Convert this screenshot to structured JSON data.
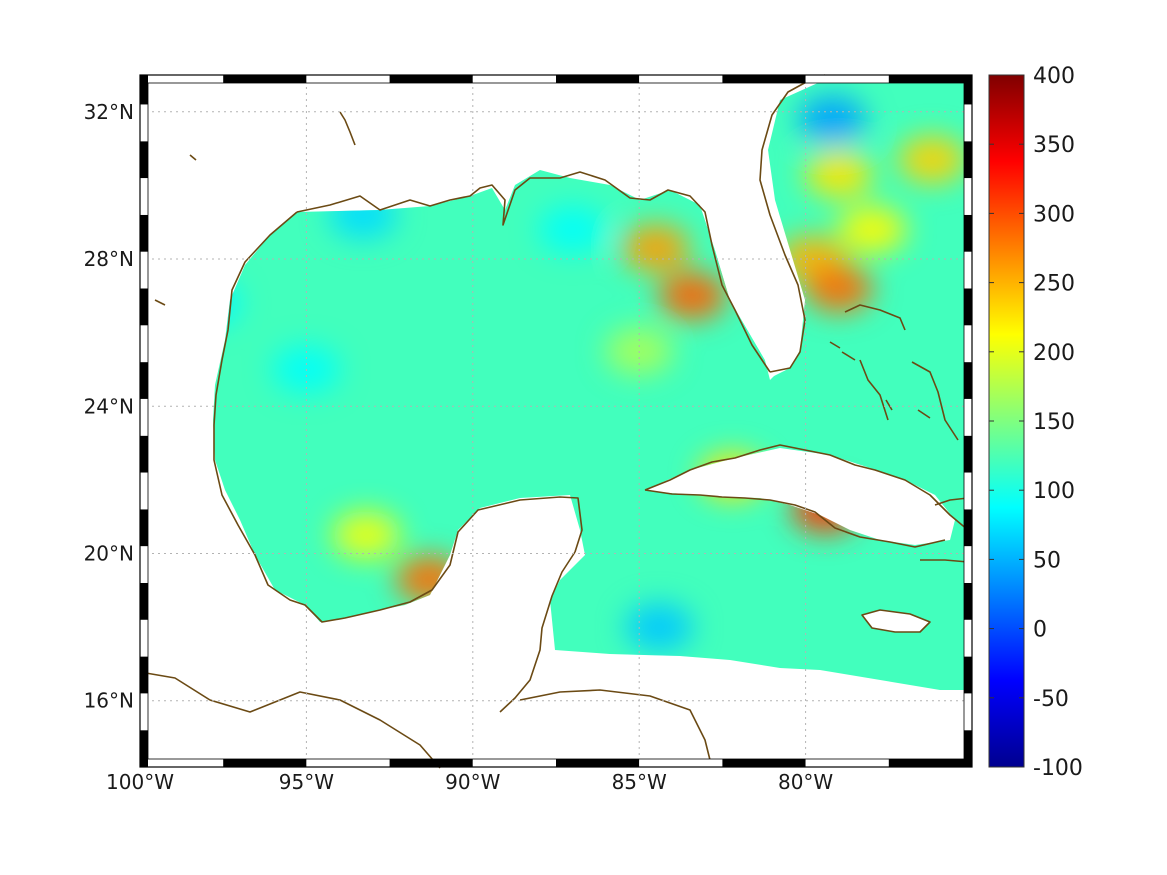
{
  "map": {
    "lon_range": [
      -100,
      -75
    ],
    "lat_range": [
      14.2,
      33
    ],
    "x_ticks": [
      {
        "value": -100,
        "label": "100°W"
      },
      {
        "value": -95,
        "label": "95°W"
      },
      {
        "value": -90,
        "label": "90°W"
      },
      {
        "value": -85,
        "label": "85°W"
      },
      {
        "value": -80,
        "label": "80°W"
      }
    ],
    "y_ticks": [
      {
        "value": 32,
        "label": "32°N"
      },
      {
        "value": 28,
        "label": "28°N"
      },
      {
        "value": 24,
        "label": "24°N"
      },
      {
        "value": 20,
        "label": "20°N"
      },
      {
        "value": 16,
        "label": "16°N"
      }
    ],
    "grid": "dotted",
    "coastline_color": "#6b4a14",
    "land_color": "#ffffff"
  },
  "colorbar": {
    "min": -100,
    "max": 400,
    "colormap": "jet",
    "ticks": [
      {
        "value": 400,
        "label": "400"
      },
      {
        "value": 350,
        "label": "350"
      },
      {
        "value": 300,
        "label": "300"
      },
      {
        "value": 250,
        "label": "250"
      },
      {
        "value": 200,
        "label": "200"
      },
      {
        "value": 150,
        "label": "150"
      },
      {
        "value": 100,
        "label": "100"
      },
      {
        "value": 50,
        "label": "50"
      },
      {
        "value": 0,
        "label": "0"
      },
      {
        "value": -50,
        "label": "-50"
      },
      {
        "value": -100,
        "label": "-100"
      }
    ]
  },
  "chart_data": {
    "type": "heatmap",
    "title": "",
    "xlabel": "",
    "ylabel": "",
    "x_range": [
      -100,
      -75
    ],
    "y_range": [
      14.2,
      33
    ],
    "value_range": [
      -100,
      400
    ],
    "background_value": 120,
    "hotspots": [
      {
        "lon": -84.5,
        "lat": 28.3,
        "value": 260
      },
      {
        "lon": -83.4,
        "lat": 27.0,
        "value": 290
      },
      {
        "lon": -79.0,
        "lat": 30.3,
        "value": 225
      },
      {
        "lon": -76.2,
        "lat": 30.7,
        "value": 235
      },
      {
        "lon": -79.8,
        "lat": 28.0,
        "value": 250
      },
      {
        "lon": -79.0,
        "lat": 27.2,
        "value": 285
      },
      {
        "lon": -78.0,
        "lat": 28.8,
        "value": 215
      },
      {
        "lon": -93.2,
        "lat": 20.5,
        "value": 205
      },
      {
        "lon": -91.3,
        "lat": 19.3,
        "value": 285
      },
      {
        "lon": -82.2,
        "lat": 22.1,
        "value": 225
      },
      {
        "lon": -79.4,
        "lat": 21.2,
        "value": 310
      },
      {
        "lon": -85.0,
        "lat": 25.5,
        "value": 170
      },
      {
        "lon": -95.0,
        "lat": 25.0,
        "value": 90
      },
      {
        "lon": -93.3,
        "lat": 29.2,
        "value": 70
      },
      {
        "lon": -84.4,
        "lat": 18.0,
        "value": 60
      },
      {
        "lon": -79.2,
        "lat": 31.8,
        "value": 40
      },
      {
        "lon": -98.0,
        "lat": 26.8,
        "value": 85
      },
      {
        "lon": -87.0,
        "lat": 28.8,
        "value": 90
      }
    ]
  }
}
